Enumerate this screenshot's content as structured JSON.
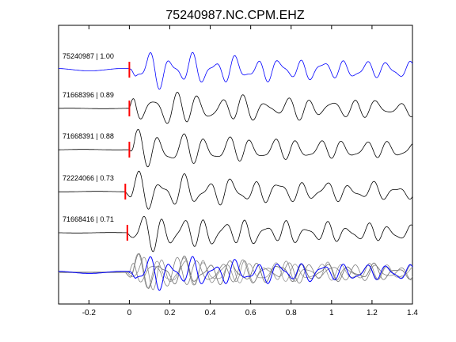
{
  "chart_data": {
    "type": "line",
    "title": "75240987.NC.CPM.EHZ",
    "xlabel": "",
    "ylabel": "",
    "xlim": [
      -0.35,
      1.4
    ],
    "xticks": [
      -0.2,
      0,
      0.2,
      0.4,
      0.6,
      0.8,
      1,
      1.2,
      1.4
    ],
    "xtick_labels": [
      "-0.2",
      "0",
      "0.2",
      "0.4",
      "0.6",
      "0.8",
      "1",
      "1.2",
      "1.4"
    ],
    "grid": false,
    "pick_color": "#ff0000",
    "stack_colors": [
      "#0000ff",
      "#7f7f7f",
      "#999999",
      "#666666",
      "#8c8c8c"
    ],
    "traces": [
      {
        "label": "75240987 | 1.00",
        "color": "#0000ff",
        "pick_time": 0.0,
        "onset": 0.0,
        "seed": 1
      },
      {
        "label": "71668396 | 0.89",
        "color": "#000000",
        "pick_time": 0.0,
        "onset": 0.0,
        "seed": 2
      },
      {
        "label": "71668391 | 0.88",
        "color": "#000000",
        "pick_time": 0.0,
        "onset": 0.0,
        "seed": 3
      },
      {
        "label": "72224066 | 0.73",
        "color": "#000000",
        "pick_time": -0.02,
        "onset": -0.02,
        "seed": 4
      },
      {
        "label": "71668416 | 0.71",
        "color": "#000000",
        "pick_time": -0.01,
        "onset": -0.01,
        "seed": 5
      }
    ]
  }
}
